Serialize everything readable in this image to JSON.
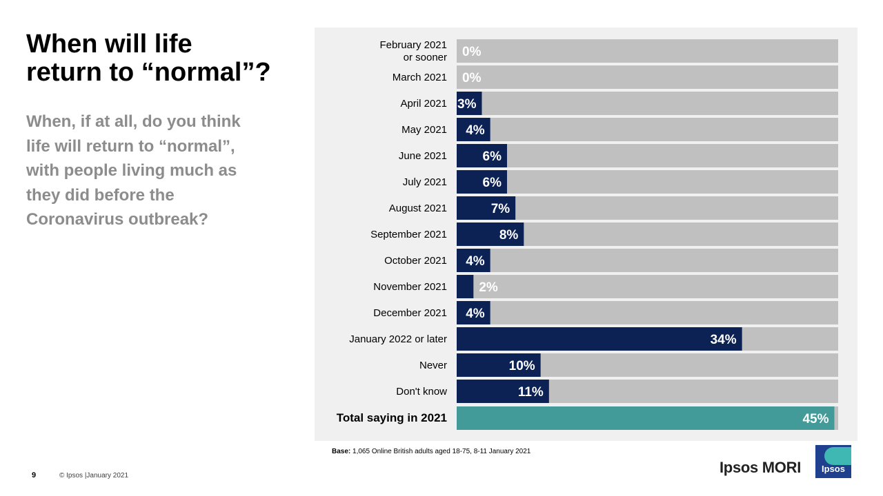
{
  "title": {
    "line1": "When will life",
    "line2": "return to “normal”?"
  },
  "question": {
    "lines": [
      "When, if at all, do you think",
      "life will return to “normal”,",
      "with people living much as",
      "they did before the",
      "Coronavirus outbreak?"
    ]
  },
  "chart_data": {
    "type": "bar",
    "orientation": "horizontal",
    "xlim": [
      0,
      50
    ],
    "colors": {
      "bar": "#0c2255",
      "track": "#c0c0c0",
      "total": "#429a99",
      "panel": "#f0f0f0"
    },
    "categories": [
      [
        "February 2021",
        "or sooner"
      ],
      [
        "March 2021"
      ],
      [
        "April 2021"
      ],
      [
        "May 2021"
      ],
      [
        "June 2021"
      ],
      [
        "July 2021"
      ],
      [
        "August 2021"
      ],
      [
        "September 2021"
      ],
      [
        "October 2021"
      ],
      [
        "November 2021"
      ],
      [
        "December 2021"
      ],
      [
        "January 2022 or later"
      ],
      [
        "Never"
      ],
      [
        "Don't know"
      ]
    ],
    "values": [
      0,
      0,
      3,
      4,
      6,
      6,
      7,
      8,
      4,
      2,
      4,
      34,
      10,
      11
    ],
    "value_labels": [
      "0%",
      "0%",
      "3%",
      "4%",
      "6%",
      "6%",
      "7%",
      "8%",
      "4%",
      "2%",
      "4%",
      "34%",
      "10%",
      "11%"
    ],
    "total": {
      "label": "Total saying in 2021",
      "value": 45,
      "value_label": "45%"
    }
  },
  "footer": {
    "base_bold": "Base:",
    "base_text": " 1,065 Online British adults aged 18-75, 8-11 January 2021",
    "page_number": "9",
    "copyright": "© Ipsos |January 2021",
    "brand": "Ipsos MORI",
    "logo_text": "Ipsos"
  }
}
